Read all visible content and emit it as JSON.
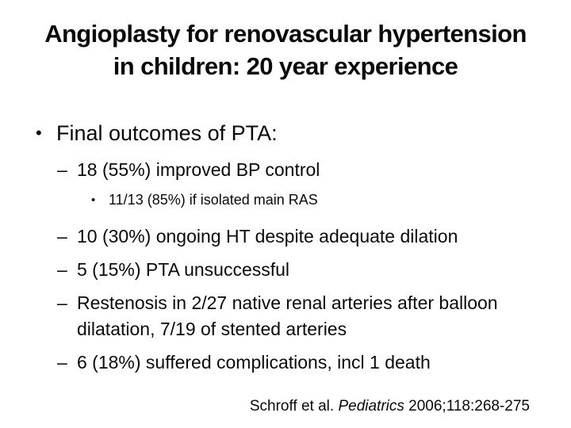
{
  "colors": {
    "background": "#ffffff",
    "text": "#0a0a0a"
  },
  "slide": {
    "title_lines": [
      "Angioplasty for renovascular hypertension",
      "in children: 20 year experience"
    ],
    "bullets": [
      {
        "level": 1,
        "marker": "•",
        "text": "Final outcomes of PTA:"
      },
      {
        "level": 2,
        "marker": "–",
        "text": "18 (55%) improved BP control"
      },
      {
        "level": 3,
        "marker": "•",
        "text": "11/13 (85%) if isolated main RAS"
      },
      {
        "level": 2,
        "marker": "–",
        "text": "10 (30%) ongoing HT despite adequate dilation"
      },
      {
        "level": 2,
        "marker": "–",
        "text": "5 (15%) PTA unsuccessful"
      },
      {
        "level": 2,
        "marker": "–",
        "text": "Restenosis in 2/27 native renal arteries after balloon dilatation, 7/19 of stented arteries"
      },
      {
        "level": 2,
        "marker": "–",
        "text": "6 (18%) suffered complications, incl 1 death"
      }
    ],
    "citation": {
      "prefix": "Schroff et al. ",
      "journal": "Pediatrics",
      "suffix": " 2006;118:268-275"
    }
  }
}
